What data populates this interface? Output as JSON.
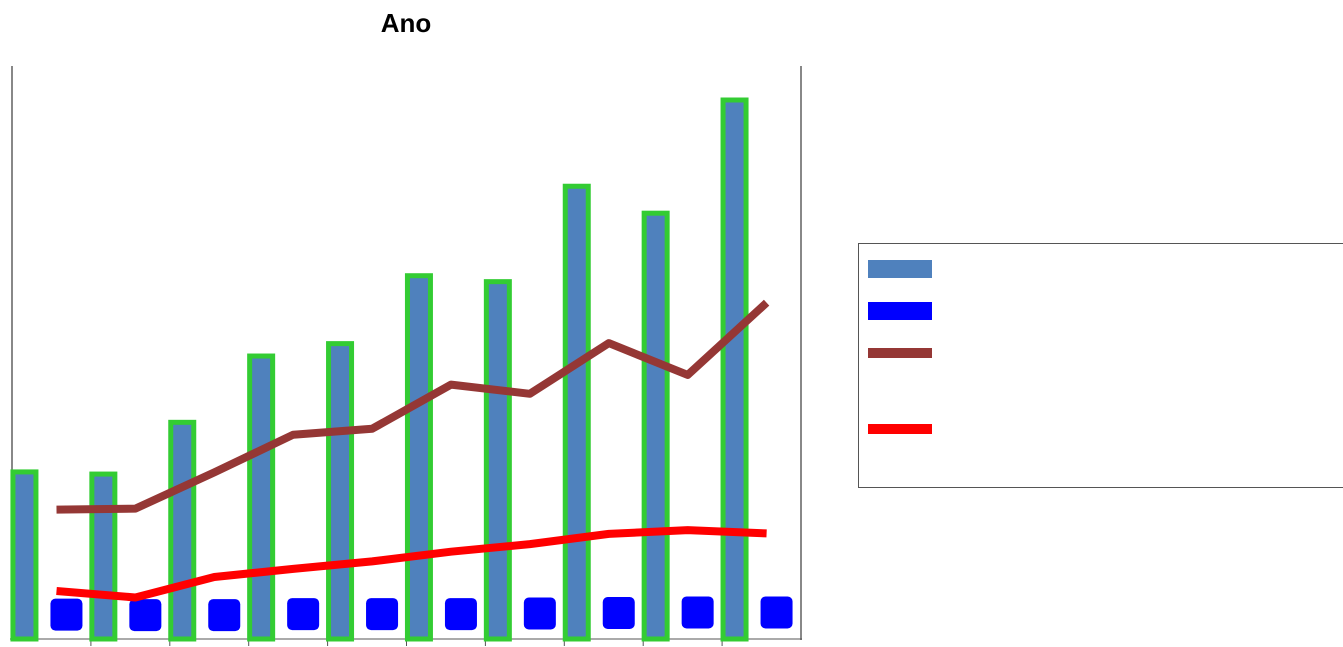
{
  "chart_data": {
    "type": "bar",
    "title": "Ano",
    "xlabel": "",
    "ylabel": "",
    "categories": [
      "",
      "",
      "",
      "",
      "",
      "",
      "",
      "",
      "",
      ""
    ],
    "ylim": [
      0,
      100
    ],
    "grid": false,
    "legend_position": "right",
    "series": [
      {
        "kind": "bar",
        "color": "#4F81BD",
        "outline": "#33CC33",
        "values": [
          31.0,
          30.6,
          40.2,
          52.5,
          54.8,
          67.4,
          66.3,
          84.0,
          79.0,
          100.0
        ]
      },
      {
        "kind": "marker",
        "color": "#0000FF",
        "values": [
          2.3,
          2.2,
          2.2,
          2.4,
          2.4,
          2.4,
          2.5,
          2.6,
          2.7,
          2.7
        ]
      },
      {
        "kind": "line",
        "color": "#953735",
        "values": [
          24.0,
          24.2,
          30.9,
          37.9,
          39.0,
          47.2,
          45.5,
          54.9,
          49.0,
          62.4
        ]
      },
      {
        "kind": "line",
        "color": "#FF0000",
        "values": [
          8.9,
          7.7,
          11.5,
          13.0,
          14.4,
          16.2,
          17.6,
          19.5,
          20.2,
          19.6
        ]
      }
    ]
  },
  "legend": {
    "entries": [
      {
        "color": "#4F81BD",
        "shape": "bar"
      },
      {
        "color": "#0000FF",
        "shape": "marker"
      },
      {
        "color": "#953735",
        "shape": "line"
      },
      {
        "color": "#FF0000",
        "shape": "line"
      }
    ]
  }
}
